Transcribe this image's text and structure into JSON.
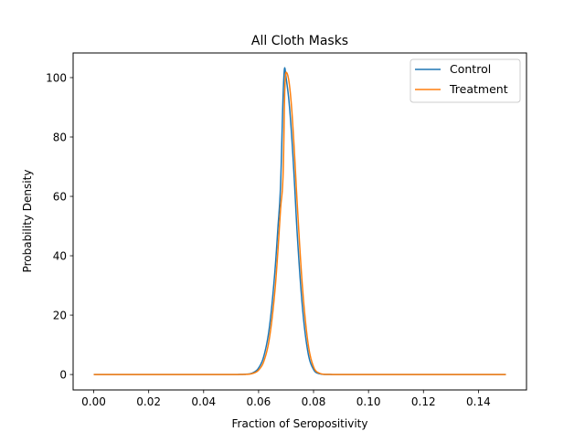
{
  "chart_data": {
    "type": "line",
    "title": "All Cloth Masks",
    "xlabel": "Fraction of Seropositivity",
    "ylabel": "Probability Density",
    "xlim": [
      -0.0075,
      0.1575
    ],
    "ylim": [
      -5.2,
      108.3
    ],
    "xticks": [
      0.0,
      0.02,
      0.04,
      0.06,
      0.08,
      0.1,
      0.12,
      0.14
    ],
    "xtick_labels": [
      "0.00",
      "0.02",
      "0.04",
      "0.06",
      "0.08",
      "0.10",
      "0.12",
      "0.14"
    ],
    "yticks": [
      0,
      20,
      40,
      60,
      80,
      100
    ],
    "ytick_labels": [
      "0",
      "20",
      "40",
      "60",
      "80",
      "100"
    ],
    "grid": false,
    "legend_position": "upper right",
    "x": [
      0.0,
      0.05,
      0.055,
      0.058,
      0.06,
      0.062,
      0.064,
      0.066,
      0.067,
      0.068,
      0.069,
      0.0695,
      0.07,
      0.071,
      0.072,
      0.073,
      0.074,
      0.076,
      0.078,
      0.08,
      0.082,
      0.085,
      0.09,
      0.1,
      0.15
    ],
    "series": [
      {
        "name": "Control",
        "color": "#1f77b4",
        "values": [
          0.0,
          0.0,
          0.07,
          0.63,
          2.2,
          6.5,
          16.4,
          35.5,
          49.0,
          63.9,
          96.0,
          103.3,
          100.0,
          92.6,
          80.9,
          65.5,
          48.2,
          22.2,
          7.3,
          1.7,
          0.3,
          0.02,
          0.0,
          0.0,
          0.0
        ]
      },
      {
        "name": "Treatment",
        "color": "#ff7f0e",
        "values": [
          0.0,
          0.0,
          0.04,
          0.41,
          1.5,
          4.7,
          12.6,
          28.8,
          41.3,
          55.8,
          69.8,
          95.0,
          101.8,
          99.0,
          90.0,
          75.5,
          58.4,
          29.0,
          10.5,
          2.6,
          0.5,
          0.03,
          0.0,
          0.0,
          0.0
        ]
      }
    ]
  }
}
